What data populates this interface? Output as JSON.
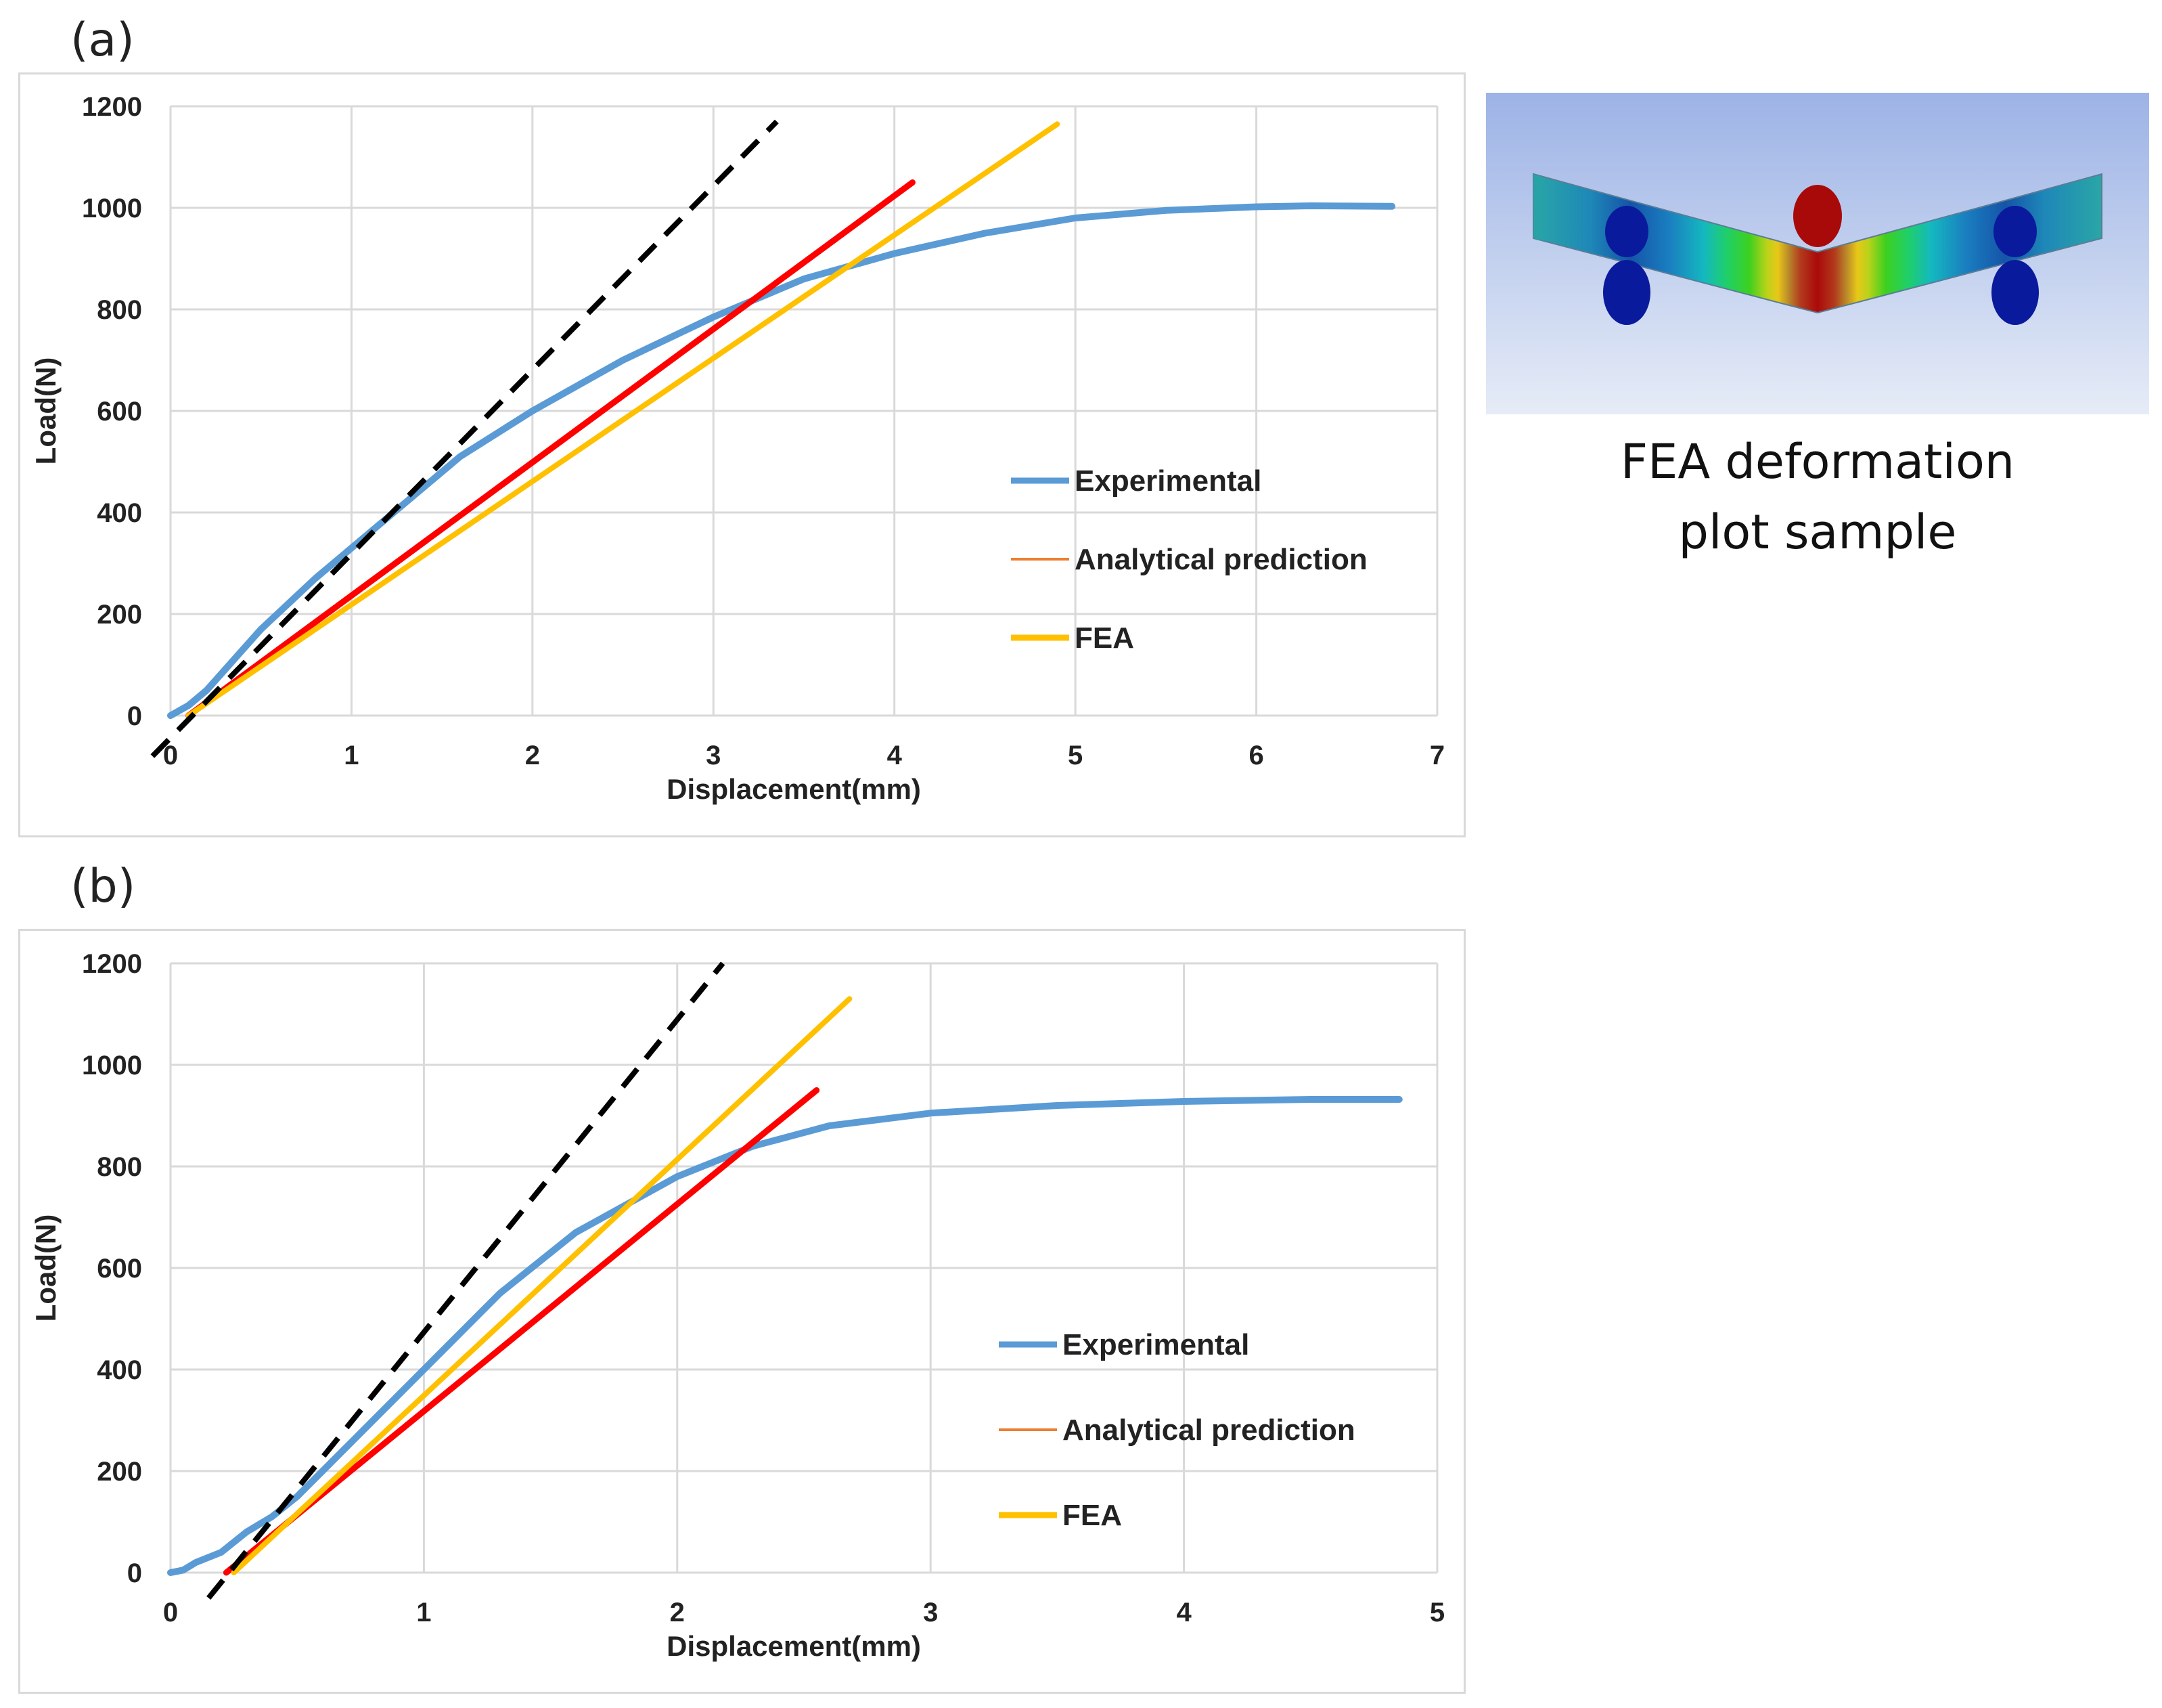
{
  "panels": [
    {
      "label": "(a)"
    },
    {
      "label": "(b)"
    }
  ],
  "fea_caption": {
    "line1": "FEA deformation",
    "line2": "plot sample"
  },
  "colors": {
    "experimental": "#5b9bd5",
    "analytical_legend": "#ed7d31",
    "analytical_line": "#ff0000",
    "fea": "#ffc000",
    "stiffness_tangent": "#000000",
    "grid": "#d9d9d9"
  },
  "chart_data": [
    {
      "type": "line",
      "panel": "(a)",
      "xlabel": "Displacement(mm)",
      "ylabel": "Load(N)",
      "xlim": [
        0,
        7
      ],
      "ylim": [
        0,
        1200
      ],
      "xticks": [
        0,
        1,
        2,
        3,
        4,
        5,
        6,
        7
      ],
      "yticks": [
        0,
        200,
        400,
        600,
        800,
        1000,
        1200
      ],
      "grid": true,
      "legend_position": "center-right",
      "series": [
        {
          "name": "Experimental",
          "key": "experimental",
          "legend": true,
          "x": [
            0,
            0.1,
            0.2,
            0.3,
            0.5,
            0.8,
            1.0,
            1.3,
            1.6,
            2.0,
            2.5,
            3.0,
            3.5,
            4.0,
            4.5,
            5.0,
            5.5,
            6.0,
            6.3,
            6.75
          ],
          "y": [
            0,
            20,
            50,
            90,
            170,
            270,
            330,
            420,
            510,
            600,
            700,
            785,
            860,
            910,
            950,
            980,
            995,
            1002,
            1004,
            1003
          ]
        },
        {
          "name": "Analytical prediction",
          "key": "analytical_line",
          "legend_key": "analytical_legend",
          "legend": true,
          "x": [
            0.1,
            4.1
          ],
          "y": [
            0,
            1050
          ]
        },
        {
          "name": "FEA",
          "key": "fea",
          "legend": true,
          "x": [
            0.1,
            4.9
          ],
          "y": [
            0,
            1165
          ]
        },
        {
          "name": "",
          "key": "stiffness_tangent",
          "legend": false,
          "dashed": true,
          "x": [
            -0.1,
            3.35
          ],
          "y": [
            -80,
            1170
          ]
        }
      ]
    },
    {
      "type": "line",
      "panel": "(b)",
      "xlabel": "Displacement(mm)",
      "ylabel": "Load(N)",
      "xlim": [
        0,
        5
      ],
      "ylim": [
        0,
        1200
      ],
      "xticks": [
        0,
        1,
        2,
        3,
        4,
        5
      ],
      "yticks": [
        0,
        200,
        400,
        600,
        800,
        1000,
        1200
      ],
      "grid": true,
      "legend_position": "center-right",
      "series": [
        {
          "name": "Experimental",
          "key": "experimental",
          "legend": true,
          "x": [
            0,
            0.05,
            0.1,
            0.2,
            0.3,
            0.4,
            0.5,
            0.7,
            1.0,
            1.3,
            1.6,
            2.0,
            2.3,
            2.6,
            3.0,
            3.5,
            4.0,
            4.5,
            4.85
          ],
          "y": [
            0,
            5,
            20,
            40,
            80,
            110,
            150,
            250,
            400,
            550,
            670,
            780,
            840,
            880,
            905,
            920,
            928,
            932,
            932
          ]
        },
        {
          "name": "Analytical prediction",
          "key": "analytical_line",
          "legend_key": "analytical_legend",
          "legend": true,
          "x": [
            0.22,
            2.55
          ],
          "y": [
            0,
            950
          ]
        },
        {
          "name": "FEA",
          "key": "fea",
          "legend": true,
          "x": [
            0.25,
            2.68
          ],
          "y": [
            0,
            1130
          ]
        },
        {
          "name": "",
          "key": "stiffness_tangent",
          "legend": false,
          "dashed": true,
          "x": [
            0.15,
            2.18
          ],
          "y": [
            -50,
            1200
          ]
        }
      ]
    }
  ]
}
